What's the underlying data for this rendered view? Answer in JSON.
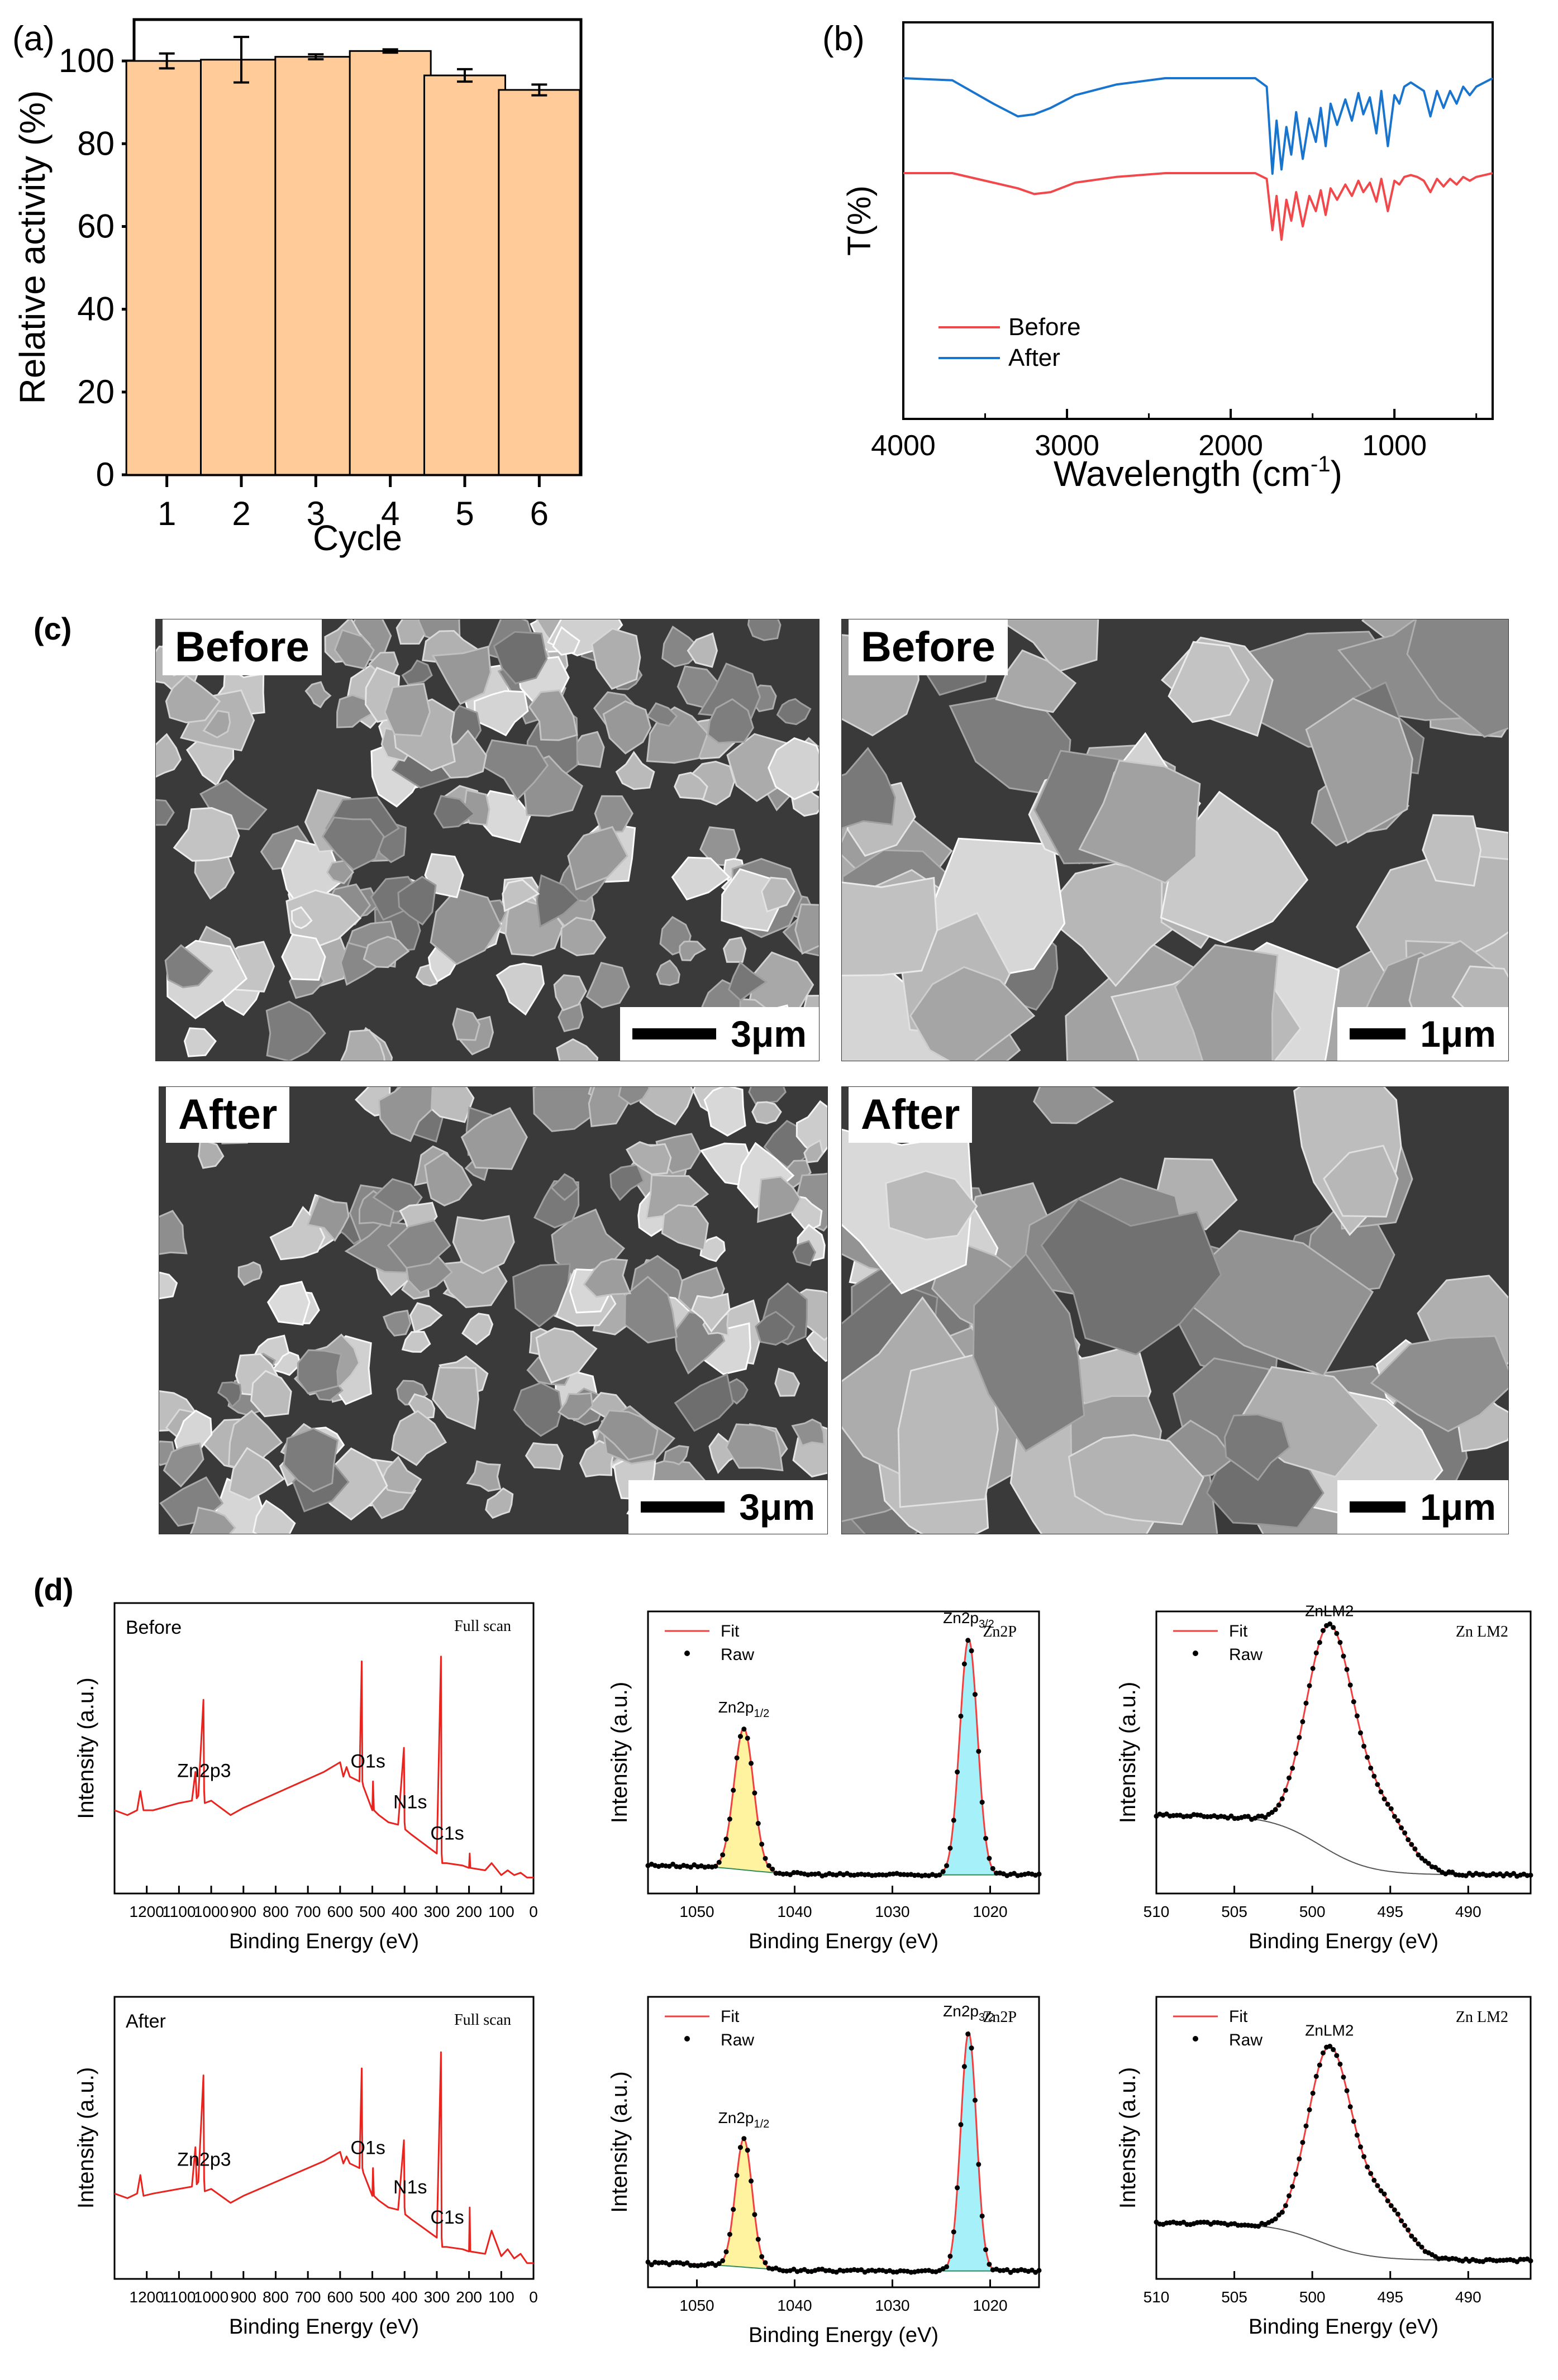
{
  "panel_labels": {
    "a": "(a)",
    "b": "(b)",
    "c": "(c)",
    "d": "(d)"
  },
  "chart_data": [
    {
      "id": "a",
      "type": "bar",
      "xlabel": "Cycle",
      "ylabel": "Relative activity (%)",
      "categories": [
        "1",
        "2",
        "3",
        "4",
        "5",
        "6"
      ],
      "values": [
        100.0,
        100.3,
        101.0,
        102.4,
        96.5,
        93.0
      ],
      "errors": [
        1.8,
        5.5,
        0.6,
        0.4,
        1.5,
        1.3
      ],
      "ylim": [
        0,
        110
      ],
      "yticks": [
        0,
        20,
        40,
        60,
        80,
        100
      ],
      "bar_color": "#FFCC99",
      "edge_color": "#000000"
    },
    {
      "id": "b",
      "type": "line",
      "xlabel": "Wavelength (cm-1)",
      "ylabel": "T(%)",
      "xlim": [
        4000,
        400
      ],
      "xticks": [
        4000,
        3000,
        2000,
        1000
      ],
      "legend": "bottom-left",
      "series": [
        {
          "name": "Before",
          "color": "#F0484B",
          "baseline": 50,
          "x": [
            4000,
            3700,
            3450,
            3300,
            3200,
            3100,
            2950,
            2700,
            2400,
            2100,
            1850,
            1780,
            1745,
            1720,
            1690,
            1660,
            1630,
            1600,
            1560,
            1520,
            1480,
            1450,
            1420,
            1390,
            1350,
            1300,
            1260,
            1220,
            1190,
            1150,
            1110,
            1080,
            1040,
            1000,
            970,
            940,
            900,
            860,
            820,
            780,
            740,
            700,
            660,
            620,
            580,
            540,
            500,
            450,
            400
          ],
          "y": [
            50,
            50,
            45,
            42,
            39,
            40,
            45,
            48,
            50,
            50,
            50,
            47,
            20,
            38,
            15,
            36,
            25,
            40,
            22,
            38,
            30,
            41,
            28,
            42,
            36,
            44,
            38,
            46,
            40,
            45,
            35,
            47,
            30,
            46,
            44,
            48,
            49,
            48,
            46,
            40,
            47,
            43,
            47,
            44,
            48,
            46,
            48,
            49,
            50
          ]
        },
        {
          "name": "After",
          "color": "#1874CD",
          "baseline": 50,
          "x": [
            4000,
            3700,
            3450,
            3300,
            3200,
            3100,
            2950,
            2700,
            2400,
            2100,
            1850,
            1780,
            1745,
            1720,
            1690,
            1660,
            1630,
            1600,
            1560,
            1520,
            1480,
            1450,
            1420,
            1390,
            1350,
            1300,
            1260,
            1220,
            1190,
            1150,
            1110,
            1080,
            1040,
            1000,
            970,
            940,
            900,
            860,
            820,
            780,
            740,
            700,
            660,
            620,
            580,
            540,
            500,
            450,
            400
          ],
          "y": [
            50,
            49,
            38,
            32,
            33,
            36,
            42,
            47,
            50,
            50,
            50,
            46,
            5,
            30,
            7,
            27,
            14,
            34,
            12,
            31,
            20,
            36,
            18,
            38,
            28,
            40,
            30,
            43,
            33,
            41,
            24,
            44,
            18,
            42,
            38,
            46,
            48,
            46,
            44,
            32,
            44,
            36,
            44,
            38,
            46,
            42,
            46,
            48,
            50
          ]
        }
      ]
    },
    {
      "id": "d1",
      "type": "line",
      "title": "Before",
      "subtitle": "Full scan",
      "xlabel": "Binding Energy (eV)",
      "ylabel": "Intensity (a.u.)",
      "xlim": [
        1300,
        0
      ],
      "xticks": [
        1200,
        1100,
        1000,
        900,
        800,
        700,
        600,
        500,
        400,
        300,
        200,
        100,
        0
      ],
      "series": [
        {
          "name": "",
          "color": "#E8241F",
          "x": [
            1300,
            1260,
            1230,
            1220,
            1210,
            1180,
            1100,
            1060,
            1049,
            1045,
            1040,
            1024,
            1022,
            1020,
            1000,
            980,
            960,
            940,
            900,
            850,
            800,
            750,
            700,
            650,
            600,
            590,
            580,
            570,
            540,
            533,
            531,
            528,
            500,
            498,
            495,
            480,
            450,
            420,
            402,
            400,
            398,
            380,
            340,
            300,
            287,
            285,
            283,
            270,
            220,
            200,
            198,
            196,
            150,
            130,
            100,
            80,
            60,
            40,
            20,
            0
          ],
          "y": [
            0.3,
            0.28,
            0.3,
            0.38,
            0.3,
            0.3,
            0.33,
            0.34,
            0.46,
            0.35,
            0.36,
            0.76,
            0.38,
            0.33,
            0.34,
            0.32,
            0.3,
            0.28,
            0.31,
            0.34,
            0.37,
            0.4,
            0.43,
            0.46,
            0.5,
            0.44,
            0.48,
            0.44,
            0.42,
            0.92,
            0.42,
            0.4,
            0.3,
            0.42,
            0.3,
            0.28,
            0.25,
            0.24,
            0.56,
            0.25,
            0.22,
            0.2,
            0.16,
            0.12,
            0.94,
            0.12,
            0.08,
            0.08,
            0.07,
            0.06,
            0.12,
            0.06,
            0.05,
            0.08,
            0.03,
            0.05,
            0.03,
            0.04,
            0.02,
            0.02
          ]
        }
      ],
      "annotations": [
        "Zn2p3",
        "O1s",
        "N1s",
        "C1s"
      ]
    },
    {
      "id": "d2",
      "type": "line",
      "title": "Zn2P",
      "legend": "top-left",
      "xlabel": "Binding Energy (eV)",
      "ylabel": "Intensity (a.u.)",
      "xlim": [
        1055,
        1015
      ],
      "xticks": [
        1050,
        1040,
        1030,
        1020
      ],
      "series": [
        {
          "name": "Fit",
          "color": "#F04040"
        },
        {
          "name": "Raw",
          "color": "#000000"
        }
      ],
      "peaks": [
        {
          "label": "Zn2p1/2",
          "center": 1045.2,
          "height": 0.57,
          "width": 1.0,
          "fill": "#FFF3A0"
        },
        {
          "label": "Zn2p3/2",
          "center": 1022.2,
          "height": 0.95,
          "width": 0.9,
          "fill": "#A6F0FA"
        }
      ],
      "background": [
        0.07,
        0.03
      ]
    },
    {
      "id": "d3",
      "type": "line",
      "title": "Zn LM2",
      "legend": "top-left",
      "xlabel": "Binding Energy (eV)",
      "ylabel": "Intensity (a.u.)",
      "xlim": [
        510,
        486
      ],
      "xticks": [
        510,
        505,
        500,
        495,
        490
      ],
      "series": [
        {
          "name": "Fit",
          "color": "#F04040"
        },
        {
          "name": "Raw",
          "color": "#000000"
        }
      ],
      "peaks": [
        {
          "label": "ZnLM2",
          "center": 498.9,
          "height": 0.88,
          "width": 1.5,
          "fill": "none"
        },
        {
          "label": "",
          "center": 495.6,
          "height": 0.24,
          "width": 1.6,
          "fill": "none"
        }
      ],
      "background": [
        0.27,
        0.03
      ]
    },
    {
      "id": "d4",
      "type": "line",
      "title": "After",
      "subtitle": "Full scan",
      "xlabel": "Binding Energy (eV)",
      "ylabel": "Intensity (a.u.)",
      "xlim": [
        1300,
        0
      ],
      "xticks": [
        1200,
        1100,
        1000,
        900,
        800,
        700,
        600,
        500,
        400,
        300,
        200,
        100,
        0
      ],
      "series": [
        {
          "name": "",
          "color": "#E8241F",
          "x": [
            1300,
            1260,
            1230,
            1220,
            1210,
            1180,
            1100,
            1060,
            1049,
            1045,
            1040,
            1024,
            1022,
            1020,
            1000,
            980,
            960,
            940,
            900,
            850,
            800,
            750,
            700,
            650,
            600,
            590,
            580,
            570,
            540,
            533,
            531,
            528,
            500,
            498,
            495,
            480,
            450,
            420,
            402,
            400,
            398,
            380,
            340,
            300,
            287,
            285,
            283,
            270,
            220,
            200,
            198,
            196,
            150,
            130,
            100,
            80,
            60,
            40,
            20,
            0
          ],
          "y": [
            0.32,
            0.3,
            0.32,
            0.4,
            0.31,
            0.32,
            0.34,
            0.35,
            0.52,
            0.36,
            0.37,
            0.83,
            0.38,
            0.33,
            0.34,
            0.32,
            0.3,
            0.28,
            0.31,
            0.34,
            0.37,
            0.4,
            0.43,
            0.46,
            0.5,
            0.45,
            0.48,
            0.45,
            0.43,
            0.86,
            0.43,
            0.41,
            0.31,
            0.43,
            0.31,
            0.29,
            0.26,
            0.25,
            0.55,
            0.26,
            0.23,
            0.21,
            0.17,
            0.13,
            0.93,
            0.13,
            0.09,
            0.09,
            0.08,
            0.07,
            0.26,
            0.07,
            0.06,
            0.16,
            0.05,
            0.08,
            0.04,
            0.06,
            0.02,
            0.02
          ]
        }
      ],
      "annotations": [
        "Zn2p3",
        "O1s",
        "N1s",
        "C1s"
      ]
    },
    {
      "id": "d5",
      "type": "line",
      "title": "Zn2P",
      "legend": "top-left",
      "xlabel": "Binding Energy (eV)",
      "ylabel": "Intensity (a.u.)",
      "xlim": [
        1055,
        1015
      ],
      "xticks": [
        1050,
        1040,
        1030,
        1020
      ],
      "series": [
        {
          "name": "Fit",
          "color": "#F04040"
        },
        {
          "name": "Raw",
          "color": "#000000"
        }
      ],
      "peaks": [
        {
          "label": "Zn2p1/2",
          "center": 1045.2,
          "height": 0.5,
          "width": 0.85,
          "fill": "#FFF3A0"
        },
        {
          "label": "Zn2p3/2",
          "center": 1022.2,
          "height": 0.93,
          "width": 0.8,
          "fill": "#A6F0FA"
        }
      ],
      "background": [
        0.05,
        0.02
      ]
    },
    {
      "id": "d6",
      "type": "line",
      "title": "Zn LM2",
      "legend": "top-left",
      "xlabel": "Binding Energy (eV)",
      "ylabel": "Intensity (a.u.)",
      "xlim": [
        510,
        486
      ],
      "xticks": [
        510,
        505,
        500,
        495,
        490
      ],
      "series": [
        {
          "name": "Fit",
          "color": "#F04040"
        },
        {
          "name": "Raw",
          "color": "#000000"
        }
      ],
      "peaks": [
        {
          "label": "ZnLM2",
          "center": 498.9,
          "height": 0.78,
          "width": 1.4,
          "fill": "none"
        },
        {
          "label": "",
          "center": 495.6,
          "height": 0.22,
          "width": 1.5,
          "fill": "none"
        }
      ],
      "background": [
        0.18,
        0.03
      ]
    }
  ],
  "sem_images": [
    {
      "label": "Before",
      "scale": "3μm"
    },
    {
      "label": "Before",
      "scale": "1μm"
    },
    {
      "label": "After",
      "scale": "3μm"
    },
    {
      "label": "After",
      "scale": "1μm"
    }
  ]
}
